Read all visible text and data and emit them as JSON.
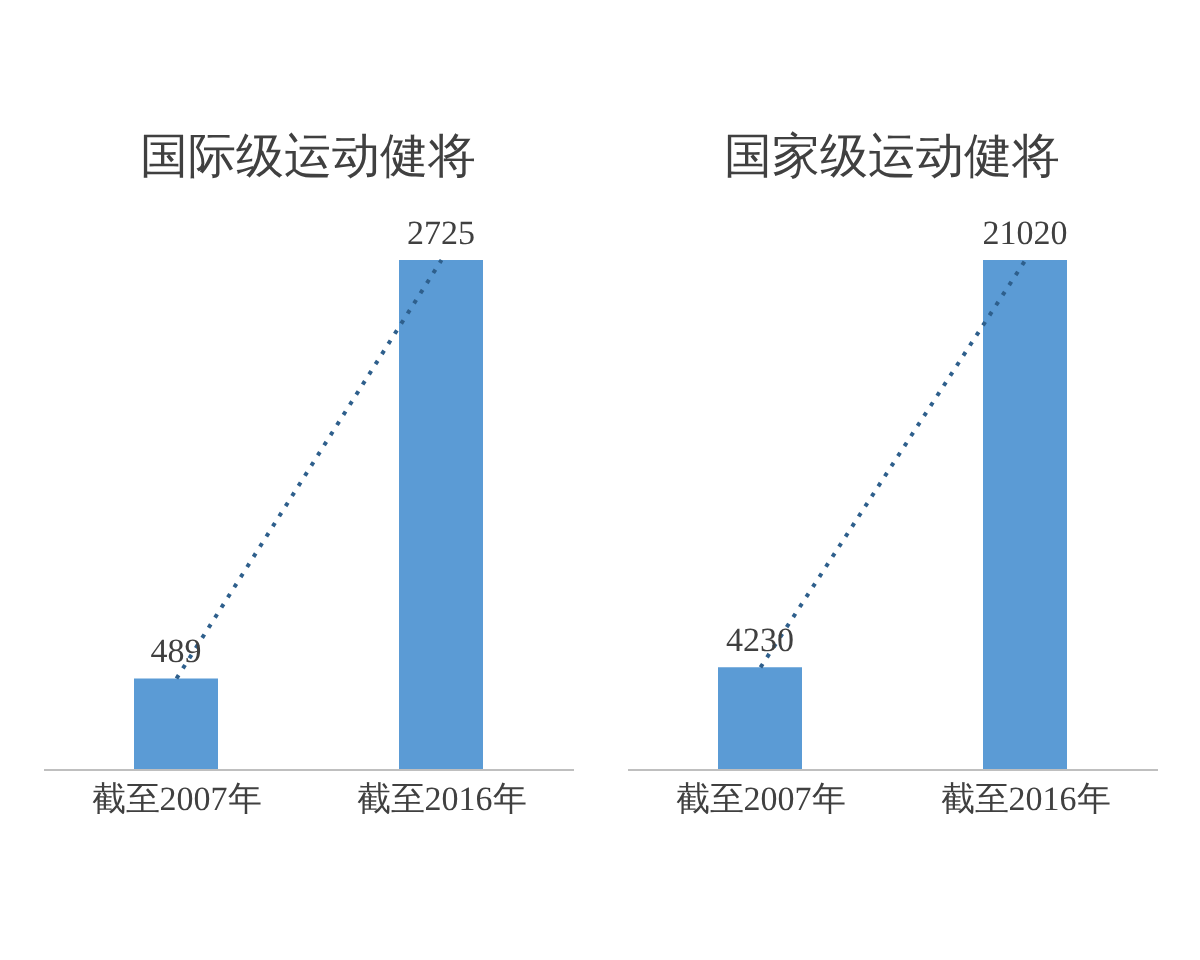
{
  "chart_data": [
    {
      "type": "bar",
      "title": "国际级运动健将",
      "categories": [
        "截至2007年",
        "截至2016年"
      ],
      "series": [
        {
          "color": "#5b9bd5",
          "values": [
            489,
            2725
          ],
          "value_labels": [
            "489",
            "2725"
          ]
        },
        {
          "type": "line",
          "color": "#2e5f8c",
          "values": [
            489,
            2725
          ],
          "line_style": "dotted",
          "marker": "none"
        }
      ]
    },
    {
      "type": "bar",
      "title": "国家级运动健将",
      "categories": [
        "截至2007年",
        "截至2016年"
      ],
      "series": [
        {
          "color": "#5b9bd5",
          "values": [
            4230,
            21020
          ],
          "value_labels": [
            "4230",
            "21020"
          ]
        },
        {
          "type": "line",
          "color": "#2e5f8c",
          "values": [
            4230,
            21020
          ],
          "line_style": "dotted",
          "marker": "none"
        }
      ]
    }
  ]
}
